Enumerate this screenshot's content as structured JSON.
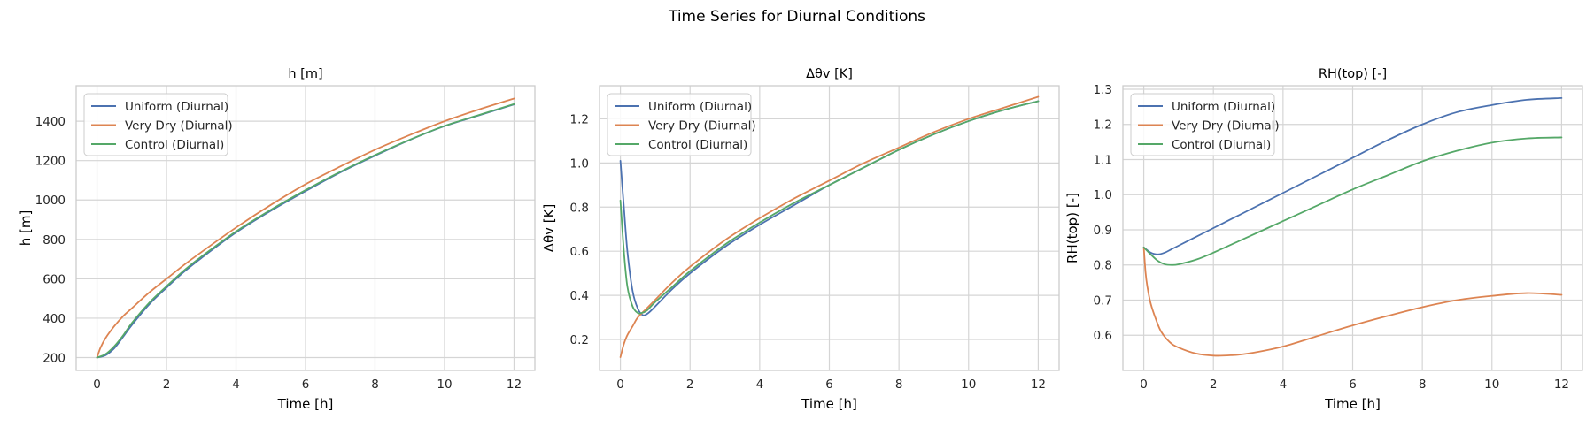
{
  "figure": {
    "title": "Time Series for Diurnal Conditions"
  },
  "colors": {
    "uniform": "#4c72b0",
    "very_dry": "#dd8452",
    "control": "#55a868",
    "grid": "#d5d5d5",
    "frame": "#cccccc"
  },
  "chart_data": [
    {
      "type": "line",
      "title": "h [m]",
      "xlabel": "Time [h]",
      "ylabel": "h [m]",
      "xlim": [
        -0.6,
        12.6
      ],
      "ylim": [
        135,
        1580
      ],
      "xticks": [
        0,
        2,
        4,
        6,
        8,
        10,
        12
      ],
      "yticks": [
        200,
        400,
        600,
        800,
        1000,
        1200,
        1400
      ],
      "legend": "upper-left",
      "grid": true,
      "series": [
        {
          "name": "Uniform (Diurnal)",
          "color_key": "uniform",
          "x": [
            0,
            0.25,
            0.5,
            0.75,
            1,
            1.5,
            2,
            2.5,
            3,
            4,
            5,
            6,
            7,
            8,
            9,
            10,
            11,
            12
          ],
          "y": [
            200,
            212,
            248,
            305,
            365,
            470,
            555,
            635,
            705,
            835,
            945,
            1045,
            1140,
            1225,
            1305,
            1375,
            1430,
            1485
          ]
        },
        {
          "name": "Very Dry (Diurnal)",
          "color_key": "very_dry",
          "x": [
            0,
            0.1,
            0.25,
            0.5,
            0.75,
            1,
            1.5,
            2,
            2.5,
            3,
            4,
            5,
            6,
            7,
            8,
            9,
            10,
            11,
            12
          ],
          "y": [
            200,
            250,
            300,
            360,
            410,
            450,
            530,
            600,
            670,
            735,
            860,
            975,
            1080,
            1170,
            1255,
            1330,
            1400,
            1460,
            1515
          ]
        },
        {
          "name": "Control (Diurnal)",
          "color_key": "control",
          "x": [
            0,
            0.25,
            0.5,
            0.75,
            1,
            1.5,
            2,
            2.5,
            3,
            4,
            5,
            6,
            7,
            8,
            9,
            10,
            11,
            12
          ],
          "y": [
            200,
            218,
            258,
            312,
            375,
            478,
            562,
            642,
            712,
            840,
            950,
            1050,
            1143,
            1228,
            1306,
            1376,
            1432,
            1487
          ]
        }
      ]
    },
    {
      "type": "line",
      "title": "Δθv [K]",
      "xlabel": "Time [h]",
      "ylabel": "Δθv [K]",
      "xlim": [
        -0.6,
        12.6
      ],
      "ylim": [
        0.06,
        1.35
      ],
      "xticks": [
        0,
        2,
        4,
        6,
        8,
        10,
        12
      ],
      "yticks": [
        0.2,
        0.4,
        0.6,
        0.8,
        1.0,
        1.2
      ],
      "ytick_labels": [
        "0.2",
        "0.4",
        "0.6",
        "0.8",
        "1.0",
        "1.2"
      ],
      "legend": "upper-left",
      "grid": true,
      "series": [
        {
          "name": "Uniform (Diurnal)",
          "color_key": "uniform",
          "x": [
            0,
            0.1,
            0.2,
            0.35,
            0.5,
            0.65,
            0.8,
            1,
            1.5,
            2,
            3,
            4,
            5,
            6,
            7,
            8,
            9,
            10,
            11,
            12
          ],
          "y": [
            1.01,
            0.8,
            0.6,
            0.42,
            0.34,
            0.31,
            0.32,
            0.35,
            0.43,
            0.5,
            0.62,
            0.72,
            0.81,
            0.9,
            0.98,
            1.06,
            1.13,
            1.19,
            1.24,
            1.28
          ]
        },
        {
          "name": "Very Dry (Diurnal)",
          "color_key": "very_dry",
          "x": [
            0,
            0.1,
            0.2,
            0.35,
            0.5,
            0.75,
            1,
            1.5,
            2,
            3,
            4,
            5,
            6,
            7,
            8,
            9,
            10,
            11,
            12
          ],
          "y": [
            0.12,
            0.18,
            0.22,
            0.26,
            0.3,
            0.34,
            0.38,
            0.46,
            0.53,
            0.65,
            0.75,
            0.84,
            0.92,
            1.0,
            1.07,
            1.14,
            1.2,
            1.25,
            1.3
          ]
        },
        {
          "name": "Control (Diurnal)",
          "color_key": "control",
          "x": [
            0,
            0.1,
            0.2,
            0.35,
            0.5,
            0.6,
            0.75,
            1,
            1.5,
            2,
            3,
            4,
            5,
            6,
            7,
            8,
            9,
            10,
            11,
            12
          ],
          "y": [
            0.83,
            0.6,
            0.44,
            0.35,
            0.32,
            0.32,
            0.33,
            0.37,
            0.44,
            0.51,
            0.63,
            0.73,
            0.82,
            0.9,
            0.98,
            1.06,
            1.13,
            1.19,
            1.24,
            1.28
          ]
        }
      ]
    },
    {
      "type": "line",
      "title": "RH(top) [-]",
      "xlabel": "Time [h]",
      "ylabel": "RH(top) [-]",
      "xlim": [
        -0.6,
        12.6
      ],
      "ylim": [
        0.5,
        1.31
      ],
      "xticks": [
        0,
        2,
        4,
        6,
        8,
        10,
        12
      ],
      "yticks": [
        0.6,
        0.7,
        0.8,
        0.9,
        1.0,
        1.1,
        1.2,
        1.3
      ],
      "ytick_labels": [
        "0.6",
        "0.7",
        "0.8",
        "0.9",
        "1.0",
        "1.1",
        "1.2",
        "1.3"
      ],
      "legend": "upper-left",
      "grid": true,
      "series": [
        {
          "name": "Uniform (Diurnal)",
          "color_key": "uniform",
          "x": [
            0,
            0.2,
            0.4,
            0.6,
            0.8,
            1,
            1.5,
            2,
            3,
            4,
            5,
            6,
            7,
            8,
            9,
            10,
            11,
            12
          ],
          "y": [
            0.85,
            0.835,
            0.83,
            0.835,
            0.845,
            0.855,
            0.88,
            0.905,
            0.955,
            1.005,
            1.055,
            1.105,
            1.155,
            1.2,
            1.235,
            1.255,
            1.27,
            1.275
          ]
        },
        {
          "name": "Very Dry (Diurnal)",
          "color_key": "very_dry",
          "x": [
            0,
            0.05,
            0.1,
            0.2,
            0.35,
            0.5,
            0.75,
            1,
            1.5,
            2,
            2.5,
            3,
            4,
            5,
            6,
            7,
            8,
            9,
            10,
            11,
            12
          ],
          "y": [
            0.85,
            0.78,
            0.74,
            0.69,
            0.645,
            0.61,
            0.58,
            0.565,
            0.548,
            0.542,
            0.543,
            0.548,
            0.568,
            0.598,
            0.628,
            0.655,
            0.68,
            0.7,
            0.712,
            0.72,
            0.715
          ]
        },
        {
          "name": "Control (Diurnal)",
          "color_key": "control",
          "x": [
            0,
            0.2,
            0.4,
            0.6,
            0.8,
            1,
            1.5,
            2,
            3,
            4,
            5,
            6,
            7,
            8,
            9,
            10,
            11,
            12
          ],
          "y": [
            0.85,
            0.83,
            0.812,
            0.802,
            0.8,
            0.802,
            0.815,
            0.835,
            0.88,
            0.925,
            0.97,
            1.015,
            1.055,
            1.095,
            1.125,
            1.148,
            1.16,
            1.163
          ]
        }
      ]
    }
  ]
}
